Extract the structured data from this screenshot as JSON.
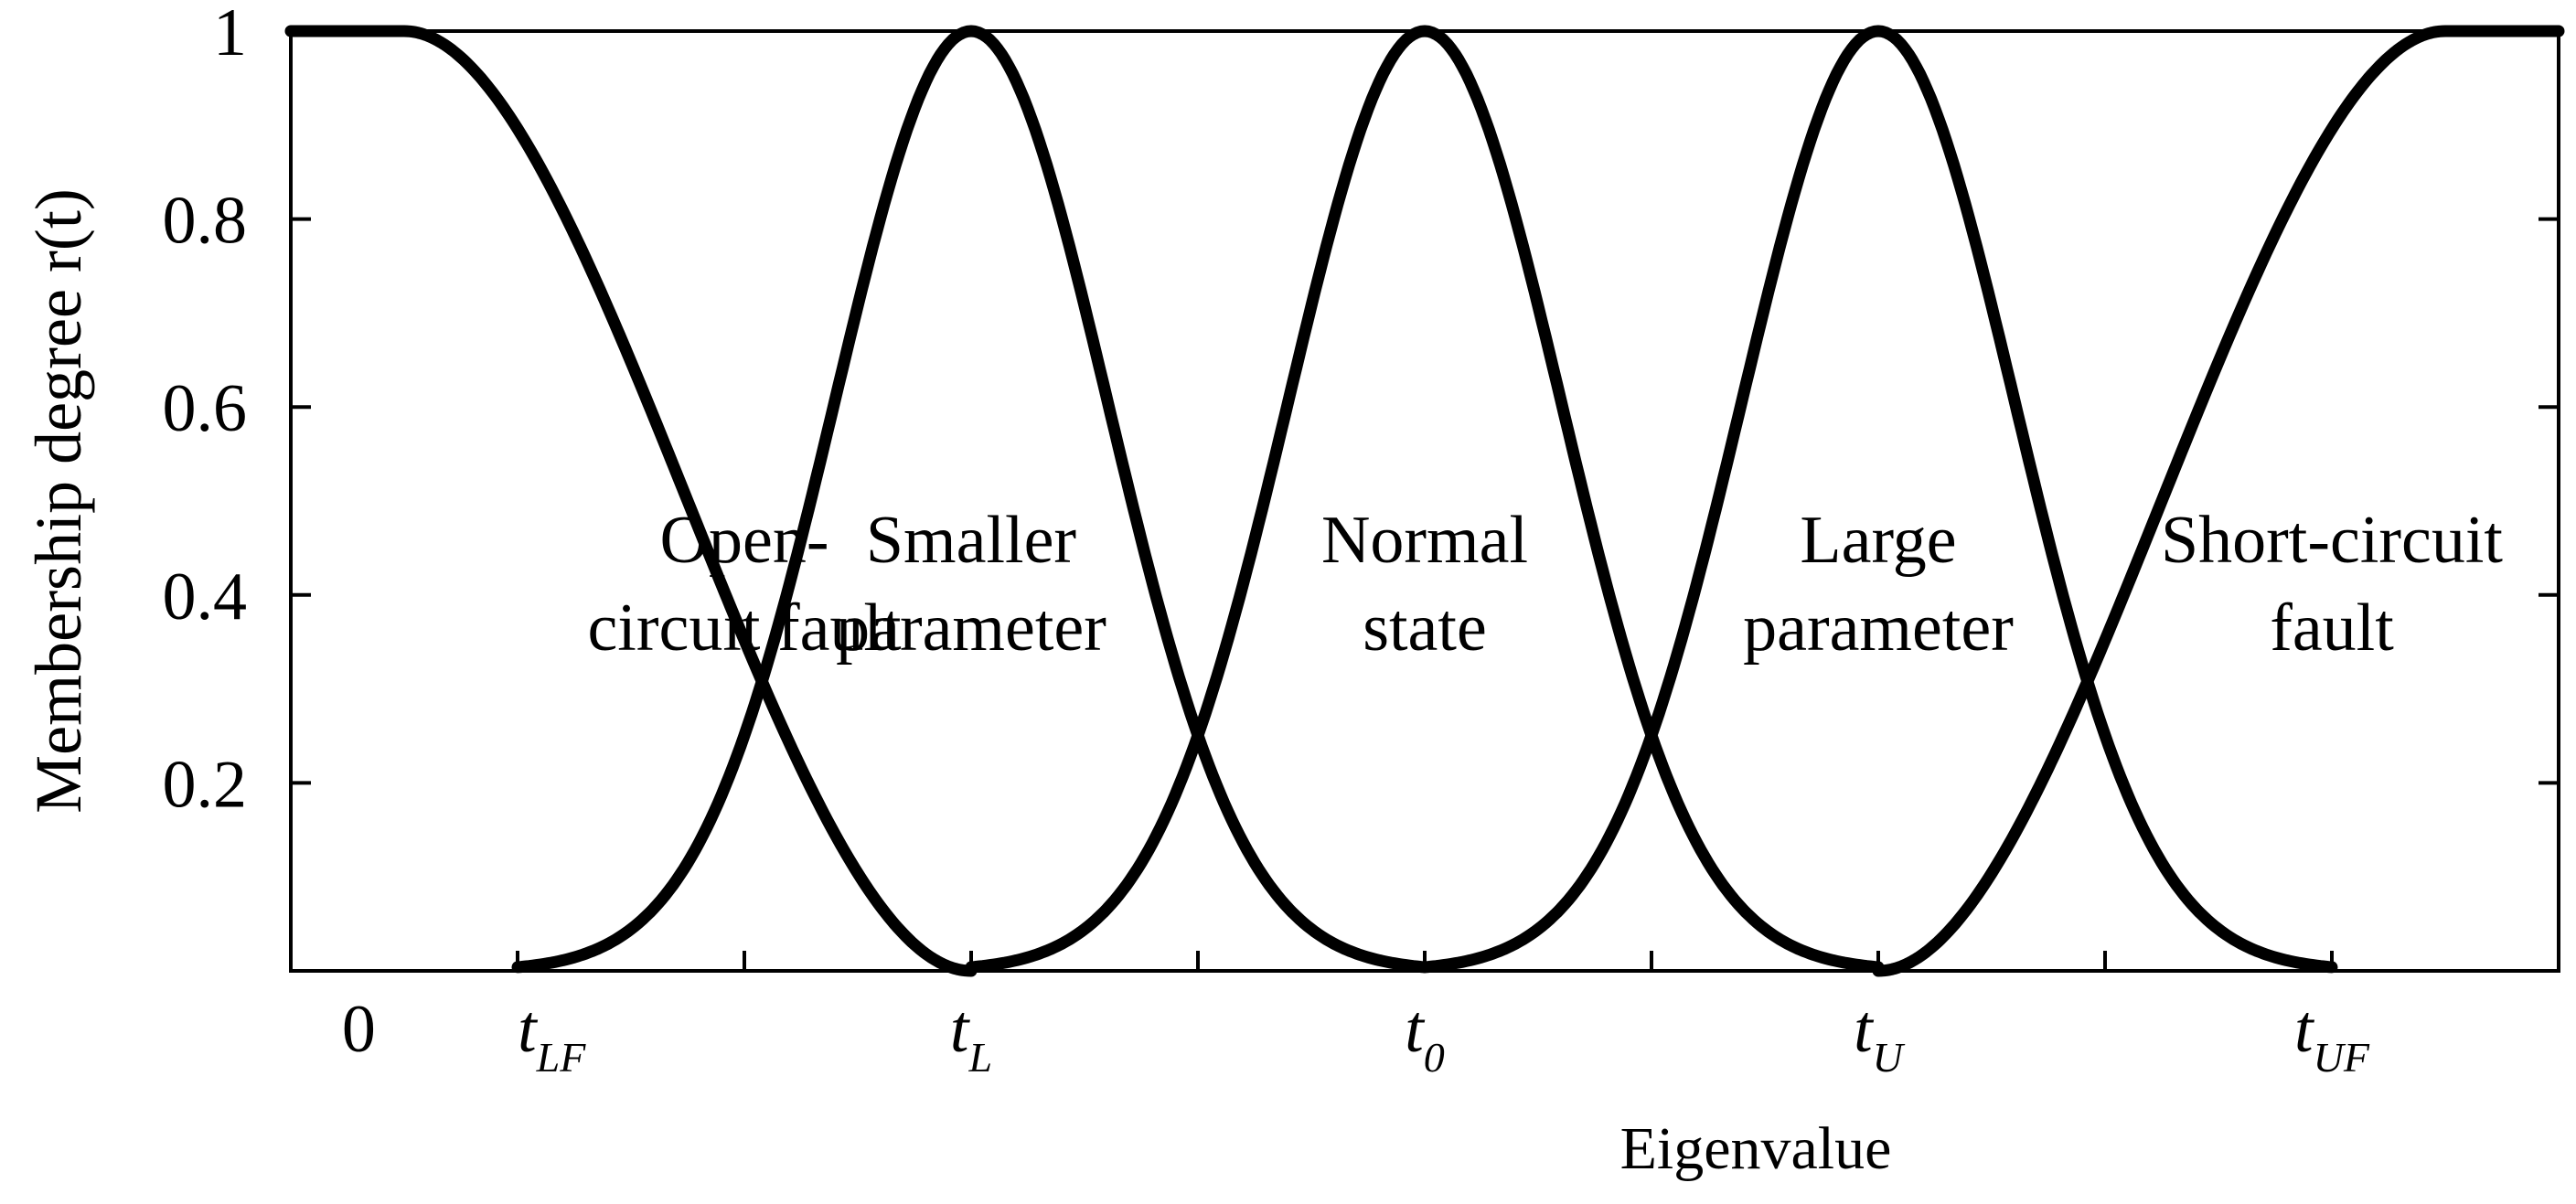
{
  "chart_data": {
    "type": "line",
    "ylabel": "Membership degree r(t)",
    "xlabel": "Eigenvalue",
    "ylim": [
      0,
      1
    ],
    "yticks": [
      "0.2",
      "0.4",
      "0.6",
      "0.8",
      "1"
    ],
    "xticks": [
      {
        "base": "0",
        "sub": ""
      },
      {
        "base": "t",
        "sub": "LF"
      },
      {
        "base": "t",
        "sub": "L"
      },
      {
        "base": "t",
        "sub": "0"
      },
      {
        "base": "t",
        "sub": "U"
      },
      {
        "base": "t",
        "sub": "UF"
      }
    ],
    "grid": false,
    "legend": "none",
    "line_color": "#000000",
    "series": [
      {
        "shape": "z-shaped",
        "full_until": 0.5,
        "zero_at": 3.0
      },
      {
        "shape": "bell",
        "center": 3.0,
        "width": 0.85,
        "range": [
          1.0,
          5.0
        ]
      },
      {
        "shape": "bell",
        "center": 5.0,
        "width": 0.85,
        "range": [
          3.0,
          7.0
        ]
      },
      {
        "shape": "bell",
        "center": 7.0,
        "width": 0.85,
        "range": [
          5.0,
          9.0
        ]
      },
      {
        "shape": "s-shaped",
        "zero_at": 7.0,
        "full_from": 9.5
      }
    ],
    "regions": [
      {
        "lines": [
          "Open-",
          "circuit fault"
        ]
      },
      {
        "lines": [
          "Smaller",
          "parameter"
        ]
      },
      {
        "lines": [
          "Normal",
          "state"
        ]
      },
      {
        "lines": [
          "Large",
          "parameter"
        ]
      },
      {
        "lines": [
          "Short-circuit",
          "fault"
        ]
      }
    ]
  }
}
